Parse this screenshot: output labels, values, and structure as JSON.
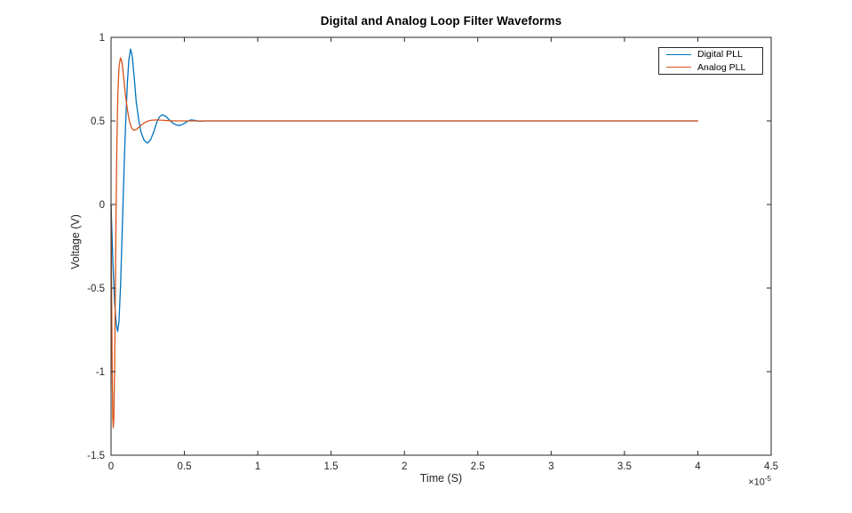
{
  "figure": {
    "title": "Digital and Analog Loop Filter Waveforms",
    "xlabel": "Time (S)",
    "ylabel": "Voltage (V)",
    "x_exponent_prefix": "×10",
    "x_exponent_power": "-5",
    "background_color": "#ffffff"
  },
  "legend": {
    "position": "northeast",
    "entries": [
      {
        "label": "Digital PLL",
        "color": "#0072BD"
      },
      {
        "label": "Analog PLL",
        "color": "#D95319"
      }
    ]
  },
  "chart_data": {
    "type": "line",
    "title": "Digital and Analog Loop Filter Waveforms",
    "xlabel": "Time (S)",
    "ylabel": "Voltage (V)",
    "x_unit_multiplier": 1e-05,
    "xlim": [
      0,
      4.5
    ],
    "ylim": [
      -1.5,
      1
    ],
    "xticks": [
      0,
      0.5,
      1,
      1.5,
      2,
      2.5,
      3,
      3.5,
      4,
      4.5
    ],
    "xtick_labels": [
      "0",
      "0.5",
      "1",
      "1.5",
      "2",
      "2.5",
      "3",
      "3.5",
      "4",
      "4.5"
    ],
    "yticks": [
      -1.5,
      -1,
      -0.5,
      0,
      0.5,
      1
    ],
    "ytick_labels": [
      "-1.5",
      "-1",
      "-0.5",
      "0",
      "0.5",
      "1"
    ],
    "grid": false,
    "box": true,
    "axis_color": "#262626",
    "tick_label_color": "#262626",
    "legend_position": "northeast",
    "series": [
      {
        "name": "Digital PLL",
        "color": "#0072BD",
        "points": [
          [
            0.0,
            0.0
          ],
          [
            0.012,
            -0.33
          ],
          [
            0.025,
            -0.6
          ],
          [
            0.036,
            -0.72
          ],
          [
            0.045,
            -0.76
          ],
          [
            0.054,
            -0.7
          ],
          [
            0.065,
            -0.48
          ],
          [
            0.078,
            -0.1
          ],
          [
            0.09,
            0.25
          ],
          [
            0.1,
            0.5
          ],
          [
            0.112,
            0.74
          ],
          [
            0.122,
            0.87
          ],
          [
            0.133,
            0.93
          ],
          [
            0.144,
            0.89
          ],
          [
            0.158,
            0.76
          ],
          [
            0.172,
            0.61
          ],
          [
            0.19,
            0.5
          ],
          [
            0.205,
            0.43
          ],
          [
            0.225,
            0.385
          ],
          [
            0.248,
            0.367
          ],
          [
            0.27,
            0.388
          ],
          [
            0.292,
            0.437
          ],
          [
            0.312,
            0.492
          ],
          [
            0.33,
            0.524
          ],
          [
            0.35,
            0.537
          ],
          [
            0.372,
            0.528
          ],
          [
            0.395,
            0.508
          ],
          [
            0.42,
            0.488
          ],
          [
            0.447,
            0.475
          ],
          [
            0.47,
            0.473
          ],
          [
            0.495,
            0.483
          ],
          [
            0.52,
            0.497
          ],
          [
            0.545,
            0.506
          ],
          [
            0.572,
            0.503
          ],
          [
            0.6,
            0.498
          ],
          [
            0.64,
            0.5
          ],
          [
            0.7,
            0.5
          ],
          [
            4.0,
            0.5
          ]
        ]
      },
      {
        "name": "Analog PLL",
        "color": "#D95319",
        "points": [
          [
            0.0,
            0.0
          ],
          [
            0.004,
            -0.55
          ],
          [
            0.008,
            -1.0
          ],
          [
            0.012,
            -1.28
          ],
          [
            0.015,
            -1.335
          ],
          [
            0.019,
            -1.28
          ],
          [
            0.024,
            -1.0
          ],
          [
            0.029,
            -0.55
          ],
          [
            0.034,
            -0.05
          ],
          [
            0.04,
            0.38
          ],
          [
            0.046,
            0.65
          ],
          [
            0.054,
            0.82
          ],
          [
            0.064,
            0.878
          ],
          [
            0.074,
            0.855
          ],
          [
            0.085,
            0.77
          ],
          [
            0.098,
            0.655
          ],
          [
            0.112,
            0.565
          ],
          [
            0.126,
            0.495
          ],
          [
            0.14,
            0.458
          ],
          [
            0.155,
            0.444
          ],
          [
            0.172,
            0.449
          ],
          [
            0.195,
            0.466
          ],
          [
            0.22,
            0.485
          ],
          [
            0.248,
            0.498
          ],
          [
            0.275,
            0.504
          ],
          [
            0.31,
            0.506
          ],
          [
            0.35,
            0.504
          ],
          [
            0.4,
            0.501
          ],
          [
            0.46,
            0.5
          ],
          [
            0.6,
            0.5
          ],
          [
            4.0,
            0.5
          ]
        ]
      }
    ]
  }
}
